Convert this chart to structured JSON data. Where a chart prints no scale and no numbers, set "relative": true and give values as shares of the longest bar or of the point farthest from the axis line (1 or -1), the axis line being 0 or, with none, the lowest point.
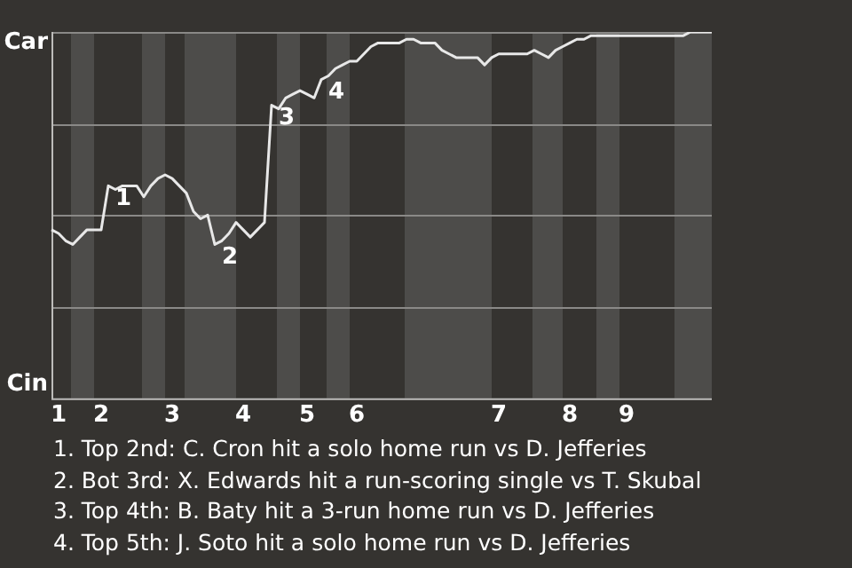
{
  "chart_data": {
    "type": "line",
    "relative": true,
    "categories": [
      null,
      "1",
      null,
      null,
      null,
      null,
      null,
      "2",
      null,
      null,
      null,
      null,
      null,
      null,
      null,
      null,
      null,
      "3",
      null,
      null,
      null,
      null,
      null,
      null,
      null,
      null,
      null,
      "4",
      null,
      null,
      null,
      null,
      null,
      null,
      null,
      null,
      "5",
      null,
      null,
      null,
      null,
      null,
      null,
      "6",
      null,
      null,
      null,
      null,
      null,
      null,
      null,
      null,
      null,
      null,
      null,
      null,
      null,
      null,
      null,
      null,
      null,
      null,
      null,
      "7",
      null,
      null,
      null,
      null,
      null,
      null,
      null,
      null,
      null,
      "8",
      null,
      null,
      null,
      null,
      null,
      null,
      null,
      "9",
      null,
      null,
      null,
      null,
      null,
      null,
      null,
      null,
      null,
      null,
      null,
      null
    ],
    "series": [
      {
        "color": "#e8e8e8",
        "values": [
          0.46,
          0.45,
          0.43,
          0.42,
          0.44,
          0.46,
          0.46,
          0.46,
          0.58,
          0.57,
          0.58,
          0.58,
          0.58,
          0.55,
          0.58,
          0.6,
          0.61,
          0.6,
          0.58,
          0.56,
          0.51,
          0.49,
          0.5,
          0.42,
          0.43,
          0.45,
          0.48,
          0.46,
          0.44,
          0.46,
          0.48,
          0.8,
          0.79,
          0.82,
          0.83,
          0.84,
          0.83,
          0.82,
          0.87,
          0.88,
          0.9,
          0.91,
          0.92,
          0.92,
          0.94,
          0.96,
          0.97,
          0.97,
          0.97,
          0.97,
          0.98,
          0.98,
          0.97,
          0.97,
          0.97,
          0.95,
          0.94,
          0.93,
          0.93,
          0.93,
          0.93,
          0.91,
          0.93,
          0.94,
          0.94,
          0.94,
          0.94,
          0.94,
          0.95,
          0.94,
          0.93,
          0.95,
          0.96,
          0.97,
          0.98,
          0.98,
          0.99,
          0.99,
          0.99,
          0.99,
          0.99,
          0.99,
          0.99,
          0.99,
          0.99,
          0.99,
          0.99,
          0.99,
          0.99,
          0.99,
          1,
          1,
          1,
          1
        ]
      }
    ],
    "grid": "y",
    "marker": "none",
    "line_style": "solid",
    "annotations": [
      "Car",
      "Cin",
      "1",
      "2",
      "3",
      "4",
      "1. Top 2nd: C. Cron hit a solo home run vs D. Jefferies",
      "2. Bot 3rd: X. Edwards hit a run-scoring single vs T. Skubal",
      "3. Top 4th: B. Baty hit a 3-run home run vs D. Jefferies",
      "4. Top 5th: J. Soto hit a solo home run vs D. Jefferies"
    ]
  }
}
